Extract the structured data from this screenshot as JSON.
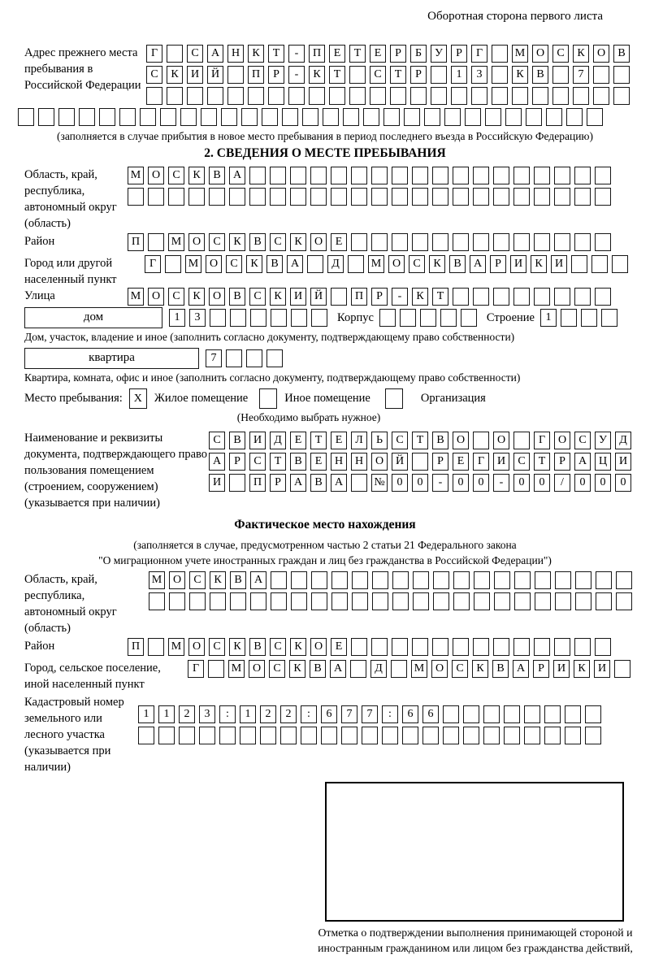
{
  "header": {
    "title": "Оборотная сторона первого листа"
  },
  "prev_address": {
    "label": "Адрес прежнего места пребывания в Российской Федерации",
    "row1": "Г САНКТ-ПЕТЕРБУРГ МОСКОВ",
    "row2": "СКИЙ ПР-КТ СТР 13 КВ 7  ",
    "row3": "                        ",
    "row4_full": "                             ",
    "caption": "(заполняется в случае прибытия в новое место пребывания в период последнего въезда в Российскую Федерацию)"
  },
  "section2": {
    "title": "2. СВЕДЕНИЯ О МЕСТЕ ПРЕБЫВАНИЯ",
    "region": {
      "label": "Область, край, республика, автономный округ (область)",
      "row1": "МОСКВА                  ",
      "row2": "                        "
    },
    "district": {
      "label": "Район",
      "row": "П МОСКВСКОЕ             "
    },
    "city": {
      "label": "Город или другой населенный пункт",
      "row": "Г МОСКВА Д МОСКВАРИКИ   "
    },
    "street": {
      "label": "Улица",
      "row": "МОСКОВСКИЙ ПР-КТ        "
    },
    "house": {
      "box_label": "дом",
      "cells": "13      ",
      "korpus_label": "Корпус",
      "korpus_cells": "     ",
      "stroenie_label": "Строение",
      "stroenie_cells": "1   "
    },
    "house_caption": "Дом, участок, владение и иное (заполнить согласно документу, подтверждающему право собственности)",
    "apartment": {
      "box_label": "квартира",
      "cells": "7   "
    },
    "apartment_caption": "Квартира, комната, офис и иное (заполнить согласно документу, подтверждающему право собственности)",
    "stay_type": {
      "label": "Место пребывания:",
      "options": [
        {
          "mark": "X",
          "label": "Жилое помещение"
        },
        {
          "mark": "",
          "label": "Иное помещение"
        },
        {
          "mark": "",
          "label": "Организация"
        }
      ],
      "caption": "(Необходимо выбрать нужное)"
    },
    "document": {
      "label": "Наименование и реквизиты документа, подтверждающего право пользования помещением (строением, сооружением) (указывается при наличии)",
      "row1": "СВИДЕТЕЛЬСТВО О ГОСУД",
      "row2": "АРСТВЕННОЙ РЕГИСТРАЦИ",
      "row3": "И ПРАВА №00-00-00/000"
    }
  },
  "actual_location": {
    "title": "Фактическое место нахождения",
    "subtitle1": "(заполняется в случае, предусмотренном частью 2 статьи 21 Федерального закона",
    "subtitle2": "\"О миграционном учете иностранных граждан и лиц без гражданства в Российской Федерации\")",
    "region": {
      "label": "Область, край, республика, автономный округ (область)",
      "row1": "МОСКВА                  ",
      "row2": "                        "
    },
    "district": {
      "label": "Район",
      "row": "П МОСКВСКОЕ             "
    },
    "city": {
      "label": "Город, сельское поселение, иной населенный пункт",
      "row": "Г МОСКВА Д МОСКВАРИКИ "
    },
    "cadastral": {
      "label": "Кадастровый номер земельного или лесного участка (указывается при наличии)",
      "row1": "1123:122:677:66        ",
      "row2": "                       "
    },
    "stamp_caption": "Отметка о подтверждении выполнения принимающей стороной и иностранным гражданином или лицом без гражданства действий, необходимых для его постановки на учет по месту пребывания"
  }
}
